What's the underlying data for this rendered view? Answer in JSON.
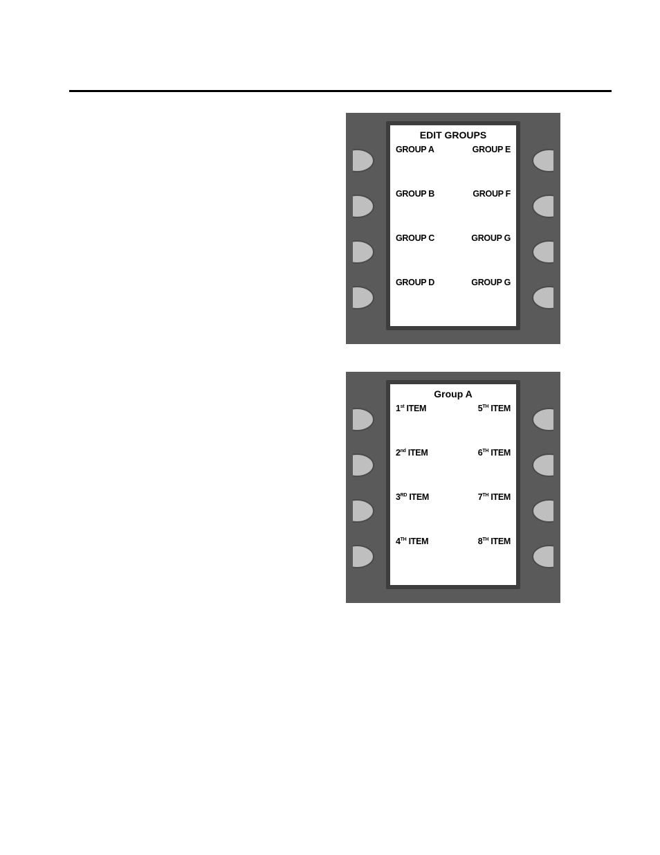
{
  "panels": [
    {
      "title": "EDIT GROUPS",
      "title_fontsize": 14,
      "rows": [
        {
          "left": "GROUP A",
          "right": "GROUP E"
        },
        {
          "left": "GROUP B",
          "right": "GROUP F"
        },
        {
          "left": "GROUP C",
          "right": "GROUP G"
        },
        {
          "left": "GROUP D",
          "right": "GROUP G"
        }
      ]
    },
    {
      "title": "Group A",
      "title_fontsize": 14,
      "rows": [
        {
          "left_pre": "1",
          "left_sup": "st",
          "left_post": " ITEM",
          "right_pre": "5",
          "right_sup": "TH",
          "right_post": " ITEM"
        },
        {
          "left_pre": "2",
          "left_sup": "nd",
          "left_post": " ITEM",
          "right_pre": "6",
          "right_sup": "TH",
          "right_post": " ITEM"
        },
        {
          "left_pre": "3",
          "left_sup": "RD",
          "left_post": " ITEM",
          "right_pre": "7",
          "right_sup": "TH",
          "right_post": " ITEM"
        },
        {
          "left_pre": "4",
          "left_sup": "TH",
          "left_post": " ITEM",
          "right_pre": "8",
          "right_sup": "TH",
          "right_post": " ITEM"
        }
      ]
    }
  ],
  "style": {
    "panel_bg": "#5a5a5a",
    "frame_bg": "#3d3d3d",
    "screen_bg": "#ffffff",
    "button_fill": "#bfbfbf",
    "button_stroke": "#4a4a4a",
    "divider_color": "#777777",
    "text_color": "#000000"
  }
}
